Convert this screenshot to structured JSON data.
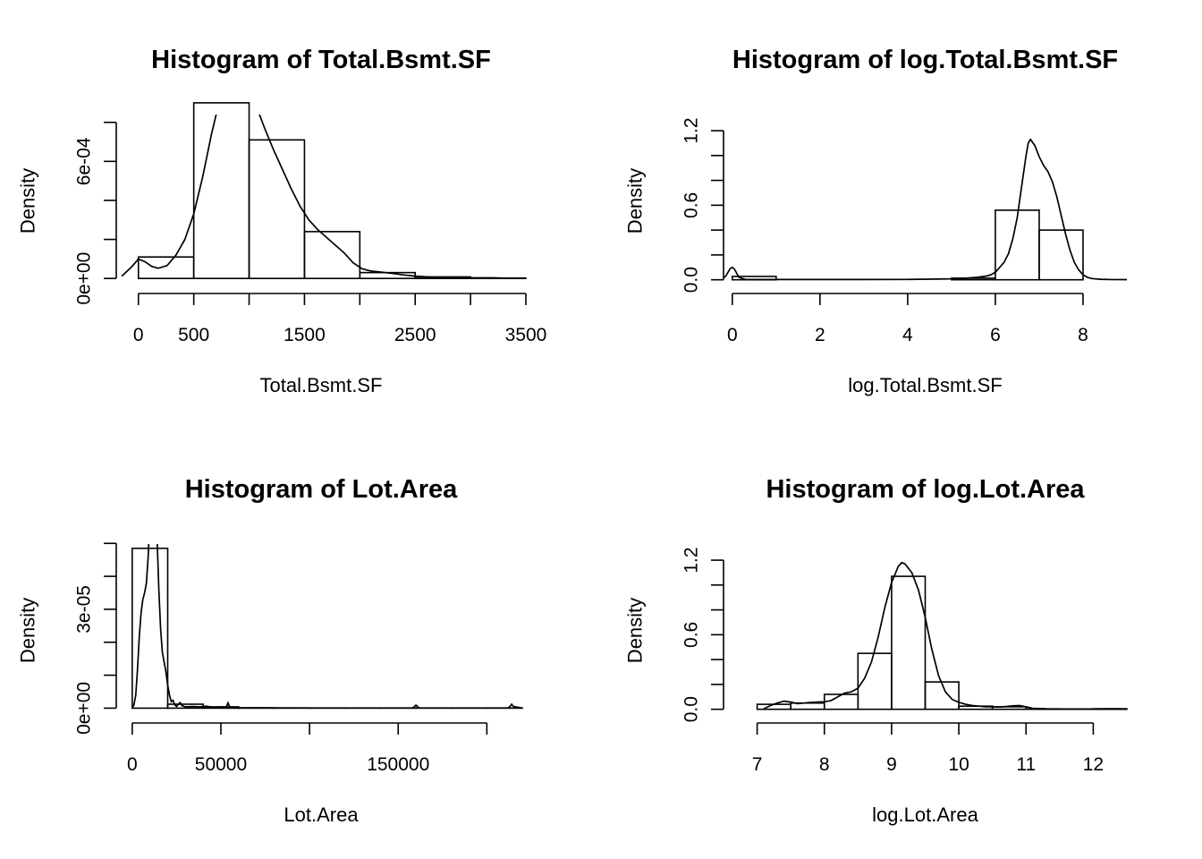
{
  "chart_data": [
    {
      "type": "bar",
      "title": "Histogram of Total.Bsmt.SF",
      "xlabel": "Total.Bsmt.SF",
      "ylabel": "Density",
      "xlim": [
        -200,
        3500
      ],
      "ylim": [
        -4.5e-05,
        0.00084
      ],
      "x_ticks": [
        0,
        500,
        1000,
        1500,
        2000,
        2500,
        3000,
        3500
      ],
      "x_tick_labels": [
        "0",
        "500",
        "",
        "1500",
        "",
        "2500",
        "",
        "3500"
      ],
      "y_ticks": [
        0,
        0.0002,
        0.0004,
        0.0006,
        0.0008
      ],
      "y_tick_labels": [
        "0e+00",
        "",
        "",
        "6e-04",
        ""
      ],
      "bins": [
        [
          0,
          500
        ],
        [
          500,
          1000
        ],
        [
          1000,
          1500
        ],
        [
          1500,
          2000
        ],
        [
          2000,
          2500
        ],
        [
          2500,
          3000
        ],
        [
          3000,
          3500
        ]
      ],
      "values": [
        0.00011,
        0.0009,
        0.00071,
        0.00024,
        3e-05,
        8e-06,
        2e-06
      ],
      "density_x": [
        -150,
        -60,
        0,
        60,
        120,
        180,
        260,
        340,
        420,
        500,
        580,
        660,
        740,
        820,
        900,
        980,
        1060,
        1140,
        1220,
        1300,
        1380,
        1460,
        1540,
        1620,
        1700,
        1780,
        1860,
        1940,
        2020,
        2100,
        2200,
        2300,
        2400,
        2500,
        2600,
        2700,
        2800,
        2900,
        3000,
        3100,
        3200,
        3300,
        3400,
        3500
      ],
      "density_y": [
        1.2e-05,
        6e-05,
        0.0001,
        8.5e-05,
        6.2e-05,
        5.2e-05,
        6.6e-05,
        0.00012,
        0.0002,
        0.00033,
        0.00052,
        0.00074,
        0.00093,
        0.00106,
        0.00108,
        0.001,
        0.00089,
        0.00077,
        0.00066,
        0.00056,
        0.00046,
        0.00037,
        0.0003,
        0.00025,
        0.00021,
        0.00017,
        0.00013,
        8e-05,
        5e-05,
        3.8e-05,
        3.2e-05,
        2.5e-05,
        1.8e-05,
        1.2e-05,
        8e-06,
        5e-06,
        4e-06,
        4e-06,
        3e-06,
        3e-06,
        3e-06,
        2e-06,
        2e-06,
        1e-06
      ]
    },
    {
      "type": "bar",
      "title": "Histogram of log.Total.Bsmt.SF",
      "xlabel": "log.Total.Bsmt.SF",
      "ylabel": "Density",
      "xlim": [
        -0.2,
        9
      ],
      "ylim": [
        -0.06,
        1.33
      ],
      "x_ticks": [
        0,
        2,
        4,
        6,
        8
      ],
      "x_tick_labels": [
        "0",
        "2",
        "4",
        "6",
        "8"
      ],
      "y_ticks": [
        0,
        0.2,
        0.4,
        0.6,
        0.8,
        1.0,
        1.2
      ],
      "y_tick_labels": [
        "0.0",
        "",
        "",
        "0.6",
        "",
        "",
        "1.2"
      ],
      "bins": [
        [
          0,
          1
        ],
        [
          1,
          2
        ],
        [
          2,
          3
        ],
        [
          3,
          4
        ],
        [
          4,
          5
        ],
        [
          5,
          6
        ],
        [
          6,
          7
        ],
        [
          7,
          8
        ]
      ],
      "values": [
        0.027,
        0,
        0,
        0,
        0,
        0.013,
        0.56,
        0.4
      ],
      "density_x": [
        -0.25,
        -0.15,
        -0.05,
        0,
        0.05,
        0.15,
        0.3,
        0.6,
        1.0,
        2.0,
        3.0,
        4.0,
        4.5,
        5.0,
        5.3,
        5.6,
        5.8,
        5.9,
        6.0,
        6.1,
        6.2,
        6.3,
        6.4,
        6.5,
        6.6,
        6.7,
        6.75,
        6.8,
        6.9,
        7.0,
        7.1,
        7.2,
        7.3,
        7.4,
        7.5,
        7.6,
        7.7,
        7.8,
        7.9,
        8.0,
        8.1,
        8.2,
        8.4,
        8.6,
        9.0
      ],
      "density_y": [
        0.002,
        0.03,
        0.09,
        0.1,
        0.085,
        0.02,
        0.003,
        0.002,
        0.002,
        0.002,
        0.002,
        0.003,
        0.005,
        0.008,
        0.012,
        0.02,
        0.03,
        0.04,
        0.06,
        0.1,
        0.14,
        0.21,
        0.33,
        0.5,
        0.75,
        1.0,
        1.1,
        1.13,
        1.08,
        0.99,
        0.92,
        0.87,
        0.79,
        0.67,
        0.52,
        0.37,
        0.24,
        0.14,
        0.08,
        0.04,
        0.02,
        0.01,
        0.004,
        0.002,
        0.001
      ]
    },
    {
      "type": "bar",
      "title": "Histogram of Lot.Area",
      "xlabel": "Lot.Area",
      "ylabel": "Density",
      "xlim": [
        -9000,
        222000
      ],
      "ylim": [
        -2.6e-06,
        4.98e-05
      ],
      "x_ticks": [
        0,
        50000,
        100000,
        150000,
        200000
      ],
      "x_tick_labels": [
        "0",
        "50000",
        "",
        "150000",
        ""
      ],
      "y_ticks": [
        0,
        1e-05,
        2e-05,
        3e-05,
        4e-05,
        5e-05
      ],
      "y_tick_labels": [
        "0e+00",
        "",
        "",
        "3e-05",
        "",
        ""
      ],
      "bins": [
        [
          0,
          20000
        ],
        [
          20000,
          40000
        ],
        [
          40000,
          60000
        ],
        [
          60000,
          80000
        ],
        [
          80000,
          100000
        ],
        [
          100000,
          120000
        ],
        [
          120000,
          140000
        ],
        [
          140000,
          160000
        ],
        [
          160000,
          180000
        ],
        [
          180000,
          200000
        ],
        [
          200000,
          220000
        ]
      ],
      "values": [
        4.85e-05,
        1.2e-06,
        4e-07,
        1e-07,
        5e-08,
        3e-08,
        2e-08,
        2e-08,
        3e-08,
        2e-08,
        3e-08
      ],
      "density_x": [
        0,
        1000,
        2000,
        3000,
        4000,
        5000,
        6000,
        7000,
        8000,
        9000,
        10000,
        11000,
        12000,
        13000,
        14000,
        15000,
        16000,
        17000,
        18000,
        19000,
        20000,
        21000,
        22000,
        23000,
        24000,
        25000,
        26000,
        27000,
        28000,
        30000,
        34000,
        38000,
        42000,
        46000,
        50000,
        53000,
        54000,
        55000,
        58000,
        70000,
        100000,
        150000,
        158000,
        159000,
        160000,
        161000,
        162000,
        180000,
        205000,
        212000,
        213000,
        214000,
        215000,
        220000
      ],
      "density_y": [
        0,
        1e-06,
        4e-06,
        1.2e-05,
        2.2e-05,
        2.9e-05,
        3.3e-05,
        3.5e-05,
        3.8e-05,
        4.6e-05,
        6e-05,
        9e-05,
        9e-05,
        7e-05,
        5.2e-05,
        3.6e-05,
        2.4e-05,
        1.7e-05,
        1.4e-05,
        1.1e-05,
        7e-06,
        4e-06,
        2e-06,
        2.4e-06,
        1e-06,
        5e-07,
        1.2e-06,
        1.7e-06,
        8e-07,
        4e-07,
        5e-07,
        4e-07,
        6e-07,
        2e-07,
        4e-07,
        3e-07,
        1.6e-06,
        4e-07,
        1e-07,
        1e-07,
        5e-08,
        5e-08,
        5e-08,
        4e-07,
        9e-07,
        4e-07,
        5e-08,
        5e-08,
        5e-08,
        5e-08,
        5e-07,
        1.2e-06,
        5e-07,
        5e-08
      ]
    },
    {
      "type": "bar",
      "title": "Histogram of log.Lot.Area",
      "xlabel": "log.Lot.Area",
      "ylabel": "Density",
      "xlim": [
        6.5,
        12.5
      ],
      "ylim": [
        -0.06,
        1.33
      ],
      "x_ticks": [
        7,
        8,
        9,
        10,
        11,
        12
      ],
      "x_tick_labels": [
        "7",
        "8",
        "9",
        "10",
        "11",
        "12"
      ],
      "y_ticks": [
        0,
        0.2,
        0.4,
        0.6,
        0.8,
        1.0,
        1.2
      ],
      "y_tick_labels": [
        "0.0",
        "",
        "",
        "0.6",
        "",
        "",
        "1.2"
      ],
      "bins": [
        [
          7,
          7.5
        ],
        [
          7.5,
          8
        ],
        [
          8,
          8.5
        ],
        [
          8.5,
          9
        ],
        [
          9,
          9.5
        ],
        [
          9.5,
          10
        ],
        [
          10,
          10.5
        ],
        [
          10.5,
          11
        ],
        [
          11,
          11.5
        ],
        [
          11.5,
          12
        ],
        [
          12,
          12.5
        ]
      ],
      "values": [
        0.04,
        0.05,
        0.12,
        0.45,
        1.07,
        0.22,
        0.025,
        0.02,
        0.002,
        0.002,
        0.004
      ],
      "density_x": [
        7.1,
        7.2,
        7.3,
        7.4,
        7.5,
        7.6,
        7.7,
        7.8,
        7.9,
        8.0,
        8.1,
        8.2,
        8.3,
        8.4,
        8.5,
        8.6,
        8.7,
        8.8,
        8.9,
        9.0,
        9.1,
        9.15,
        9.2,
        9.3,
        9.4,
        9.5,
        9.6,
        9.7,
        9.8,
        9.9,
        10.0,
        10.1,
        10.2,
        10.3,
        10.4,
        10.5,
        10.6,
        10.7,
        10.8,
        10.9,
        11.0,
        11.1,
        11.3,
        11.6,
        12.0,
        12.3,
        12.5
      ],
      "density_y": [
        0.005,
        0.03,
        0.05,
        0.065,
        0.058,
        0.045,
        0.05,
        0.055,
        0.058,
        0.06,
        0.07,
        0.1,
        0.13,
        0.14,
        0.17,
        0.25,
        0.38,
        0.58,
        0.82,
        1.02,
        1.15,
        1.18,
        1.17,
        1.1,
        0.96,
        0.74,
        0.48,
        0.27,
        0.14,
        0.08,
        0.055,
        0.04,
        0.03,
        0.025,
        0.02,
        0.02,
        0.018,
        0.022,
        0.028,
        0.03,
        0.02,
        0.008,
        0.004,
        0.003,
        0.003,
        0.004,
        0.002
      ]
    }
  ]
}
